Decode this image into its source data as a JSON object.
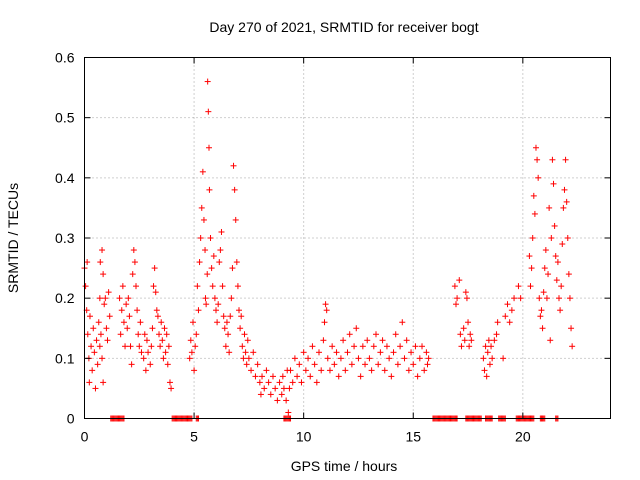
{
  "chart_data": {
    "type": "scatter",
    "title": "Day 270 of 2021, SRMTID for receiver bogt",
    "xlabel": "GPS time / hours",
    "ylabel": "SRMTID / TECUs",
    "xlim": [
      0,
      24
    ],
    "ylim": [
      0,
      0.6
    ],
    "x_ticks": [
      0,
      5,
      10,
      15,
      20
    ],
    "x_tick_labels": [
      "0",
      "5",
      "10",
      "15",
      "20"
    ],
    "y_ticks": [
      0,
      0.1,
      0.2,
      0.3,
      0.4,
      0.5,
      0.6
    ],
    "y_tick_labels": [
      "0",
      "0.1",
      "0.2",
      "0.3",
      "0.4",
      "0.5",
      "0.6"
    ],
    "grid": true,
    "marker": "plus",
    "series_color": "#ff0000",
    "series": [
      {
        "name": "SRMTID",
        "points": [
          [
            0.0,
            0.25
          ],
          [
            0.05,
            0.22
          ],
          [
            0.1,
            0.18
          ],
          [
            0.12,
            0.26
          ],
          [
            0.15,
            0.14
          ],
          [
            0.2,
            0.1
          ],
          [
            0.22,
            0.06
          ],
          [
            0.25,
            0.17
          ],
          [
            0.3,
            0.12
          ],
          [
            0.35,
            0.08
          ],
          [
            0.4,
            0.15
          ],
          [
            0.45,
            0.11
          ],
          [
            0.5,
            0.05
          ],
          [
            0.55,
            0.13
          ],
          [
            0.6,
            0.09
          ],
          [
            0.65,
            0.16
          ],
          [
            0.7,
            0.12
          ],
          [
            0.75,
            0.14
          ],
          [
            0.8,
            0.1
          ],
          [
            0.85,
            0.06
          ],
          [
            0.7,
            0.2
          ],
          [
            0.72,
            0.26
          ],
          [
            0.8,
            0.28
          ],
          [
            0.85,
            0.24
          ],
          [
            0.9,
            0.19
          ],
          [
            0.95,
            0.2
          ],
          [
            1.0,
            0.15
          ],
          [
            1.05,
            0.13
          ],
          [
            1.1,
            0.21
          ],
          [
            1.15,
            0.17
          ],
          [
            1.6,
            0.2
          ],
          [
            1.65,
            0.14
          ],
          [
            1.7,
            0.18
          ],
          [
            1.75,
            0.22
          ],
          [
            1.8,
            0.16
          ],
          [
            1.85,
            0.12
          ],
          [
            1.9,
            0.19
          ],
          [
            1.95,
            0.15
          ],
          [
            2.0,
            0.2
          ],
          [
            2.05,
            0.17
          ],
          [
            2.1,
            0.12
          ],
          [
            2.15,
            0.09
          ],
          [
            2.2,
            0.24
          ],
          [
            2.25,
            0.28
          ],
          [
            2.3,
            0.26
          ],
          [
            2.35,
            0.22
          ],
          [
            2.4,
            0.18
          ],
          [
            2.45,
            0.14
          ],
          [
            2.5,
            0.12
          ],
          [
            2.55,
            0.16
          ],
          [
            2.6,
            0.11
          ],
          [
            2.7,
            0.1
          ],
          [
            2.75,
            0.14
          ],
          [
            2.8,
            0.08
          ],
          [
            2.85,
            0.13
          ],
          [
            2.9,
            0.11
          ],
          [
            3.0,
            0.09
          ],
          [
            3.05,
            0.12
          ],
          [
            3.1,
            0.15
          ],
          [
            3.15,
            0.22
          ],
          [
            3.2,
            0.25
          ],
          [
            3.25,
            0.21
          ],
          [
            3.3,
            0.18
          ],
          [
            3.35,
            0.17
          ],
          [
            3.4,
            0.14
          ],
          [
            3.45,
            0.12
          ],
          [
            3.5,
            0.16
          ],
          [
            3.55,
            0.13
          ],
          [
            3.6,
            0.1
          ],
          [
            3.65,
            0.15
          ],
          [
            3.7,
            0.11
          ],
          [
            3.75,
            0.14
          ],
          [
            3.8,
            0.09
          ],
          [
            3.85,
            0.12
          ],
          [
            3.9,
            0.06
          ],
          [
            3.95,
            0.05
          ],
          [
            4.8,
            0.1
          ],
          [
            4.85,
            0.13
          ],
          [
            4.9,
            0.11
          ],
          [
            4.95,
            0.16
          ],
          [
            5.0,
            0.08
          ],
          [
            5.05,
            0.12
          ],
          [
            5.1,
            0.14
          ],
          [
            5.15,
            0.22
          ],
          [
            5.2,
            0.18
          ],
          [
            5.25,
            0.26
          ],
          [
            5.3,
            0.3
          ],
          [
            5.35,
            0.35
          ],
          [
            5.4,
            0.41
          ],
          [
            5.45,
            0.33
          ],
          [
            5.5,
            0.28
          ],
          [
            5.52,
            0.2
          ],
          [
            5.55,
            0.19
          ],
          [
            5.6,
            0.24
          ],
          [
            5.62,
            0.56
          ],
          [
            5.65,
            0.51
          ],
          [
            5.68,
            0.45
          ],
          [
            5.7,
            0.38
          ],
          [
            5.75,
            0.3
          ],
          [
            5.8,
            0.25
          ],
          [
            5.85,
            0.22
          ],
          [
            5.9,
            0.27
          ],
          [
            5.95,
            0.2
          ],
          [
            6.0,
            0.18
          ],
          [
            6.05,
            0.16
          ],
          [
            6.1,
            0.19
          ],
          [
            6.15,
            0.26
          ],
          [
            6.2,
            0.28
          ],
          [
            6.25,
            0.31
          ],
          [
            6.3,
            0.22
          ],
          [
            6.35,
            0.17
          ],
          [
            6.4,
            0.15
          ],
          [
            6.45,
            0.12
          ],
          [
            6.5,
            0.16
          ],
          [
            6.55,
            0.14
          ],
          [
            6.6,
            0.11
          ],
          [
            6.65,
            0.17
          ],
          [
            6.7,
            0.2
          ],
          [
            6.75,
            0.25
          ],
          [
            6.8,
            0.42
          ],
          [
            6.85,
            0.38
          ],
          [
            6.9,
            0.33
          ],
          [
            6.95,
            0.26
          ],
          [
            7.0,
            0.22
          ],
          [
            7.05,
            0.18
          ],
          [
            7.1,
            0.15
          ],
          [
            7.15,
            0.17
          ],
          [
            7.2,
            0.12
          ],
          [
            7.25,
            0.1
          ],
          [
            7.3,
            0.14
          ],
          [
            7.35,
            0.11
          ],
          [
            7.4,
            0.09
          ],
          [
            7.45,
            0.13
          ],
          [
            7.5,
            0.1
          ],
          [
            7.6,
            0.08
          ],
          [
            7.7,
            0.11
          ],
          [
            7.8,
            0.07
          ],
          [
            7.9,
            0.09
          ],
          [
            8.0,
            0.06
          ],
          [
            8.05,
            0.04
          ],
          [
            8.1,
            0.07
          ],
          [
            8.2,
            0.05
          ],
          [
            8.3,
            0.08
          ],
          [
            8.4,
            0.06
          ],
          [
            8.5,
            0.04
          ],
          [
            8.6,
            0.07
          ],
          [
            8.7,
            0.05
          ],
          [
            8.8,
            0.03
          ],
          [
            8.9,
            0.06
          ],
          [
            9.0,
            0.04
          ],
          [
            9.05,
            0.07
          ],
          [
            9.1,
            0.05
          ],
          [
            9.2,
            0.03
          ],
          [
            9.25,
            0.08
          ],
          [
            9.3,
            0.01
          ],
          [
            9.35,
            0.05
          ],
          [
            9.4,
            0.08
          ],
          [
            9.5,
            0.06
          ],
          [
            9.6,
            0.1
          ],
          [
            9.7,
            0.07
          ],
          [
            9.8,
            0.09
          ],
          [
            9.9,
            0.06
          ],
          [
            10.0,
            0.11
          ],
          [
            10.1,
            0.08
          ],
          [
            10.2,
            0.1
          ],
          [
            10.3,
            0.07
          ],
          [
            10.4,
            0.12
          ],
          [
            10.5,
            0.09
          ],
          [
            10.6,
            0.06
          ],
          [
            10.7,
            0.11
          ],
          [
            10.8,
            0.08
          ],
          [
            10.9,
            0.13
          ],
          [
            10.95,
            0.16
          ],
          [
            11.0,
            0.19
          ],
          [
            11.05,
            0.18
          ],
          [
            11.1,
            0.1
          ],
          [
            11.2,
            0.08
          ],
          [
            11.3,
            0.12
          ],
          [
            11.4,
            0.09
          ],
          [
            11.5,
            0.11
          ],
          [
            11.6,
            0.07
          ],
          [
            11.7,
            0.1
          ],
          [
            11.8,
            0.13
          ],
          [
            11.9,
            0.08
          ],
          [
            12.0,
            0.11
          ],
          [
            12.1,
            0.14
          ],
          [
            12.2,
            0.09
          ],
          [
            12.3,
            0.12
          ],
          [
            12.4,
            0.15
          ],
          [
            12.5,
            0.1
          ],
          [
            12.6,
            0.07
          ],
          [
            12.7,
            0.12
          ],
          [
            12.8,
            0.09
          ],
          [
            12.9,
            0.13
          ],
          [
            13.0,
            0.1
          ],
          [
            13.1,
            0.08
          ],
          [
            13.2,
            0.12
          ],
          [
            13.3,
            0.14
          ],
          [
            13.4,
            0.09
          ],
          [
            13.5,
            0.11
          ],
          [
            13.6,
            0.13
          ],
          [
            13.7,
            0.08
          ],
          [
            13.8,
            0.12
          ],
          [
            13.9,
            0.1
          ],
          [
            14.0,
            0.07
          ],
          [
            14.1,
            0.11
          ],
          [
            14.2,
            0.14
          ],
          [
            14.3,
            0.09
          ],
          [
            14.4,
            0.12
          ],
          [
            14.5,
            0.16
          ],
          [
            14.6,
            0.1
          ],
          [
            14.7,
            0.13
          ],
          [
            14.8,
            0.08
          ],
          [
            14.9,
            0.11
          ],
          [
            15.0,
            0.09
          ],
          [
            15.1,
            0.12
          ],
          [
            15.2,
            0.07
          ],
          [
            15.3,
            0.1
          ],
          [
            15.4,
            0.12
          ],
          [
            15.5,
            0.08
          ],
          [
            15.6,
            0.11
          ],
          [
            15.65,
            0.09
          ],
          [
            15.7,
            0.1
          ],
          [
            16.9,
            0.22
          ],
          [
            16.95,
            0.19
          ],
          [
            17.0,
            0.2
          ],
          [
            17.1,
            0.23
          ],
          [
            17.15,
            0.14
          ],
          [
            17.2,
            0.12
          ],
          [
            17.3,
            0.15
          ],
          [
            17.35,
            0.13
          ],
          [
            17.4,
            0.21
          ],
          [
            17.45,
            0.2
          ],
          [
            17.5,
            0.16
          ],
          [
            17.55,
            0.12
          ],
          [
            17.6,
            0.14
          ],
          [
            17.65,
            0.13
          ],
          [
            18.2,
            0.1
          ],
          [
            18.25,
            0.08
          ],
          [
            18.3,
            0.12
          ],
          [
            18.35,
            0.07
          ],
          [
            18.4,
            0.11
          ],
          [
            18.45,
            0.13
          ],
          [
            18.5,
            0.09
          ],
          [
            18.55,
            0.12
          ],
          [
            18.6,
            0.1
          ],
          [
            18.7,
            0.13
          ],
          [
            18.8,
            0.14
          ],
          [
            18.85,
            0.16
          ],
          [
            19.1,
            0.1
          ],
          [
            19.2,
            0.17
          ],
          [
            19.3,
            0.19
          ],
          [
            19.4,
            0.16
          ],
          [
            19.5,
            0.18
          ],
          [
            19.6,
            0.2
          ],
          [
            19.8,
            0.22
          ],
          [
            19.9,
            0.2
          ],
          [
            20.3,
            0.27
          ],
          [
            20.35,
            0.22
          ],
          [
            20.4,
            0.25
          ],
          [
            20.45,
            0.3
          ],
          [
            20.5,
            0.37
          ],
          [
            20.55,
            0.34
          ],
          [
            20.6,
            0.45
          ],
          [
            20.65,
            0.43
          ],
          [
            20.7,
            0.4
          ],
          [
            20.75,
            0.2
          ],
          [
            20.8,
            0.17
          ],
          [
            20.85,
            0.18
          ],
          [
            20.9,
            0.15
          ],
          [
            20.95,
            0.21
          ],
          [
            21.0,
            0.25
          ],
          [
            21.05,
            0.28
          ],
          [
            21.1,
            0.2
          ],
          [
            21.15,
            0.24
          ],
          [
            21.2,
            0.35
          ],
          [
            21.25,
            0.13
          ],
          [
            21.3,
            0.3
          ],
          [
            21.35,
            0.43
          ],
          [
            21.4,
            0.39
          ],
          [
            21.45,
            0.32
          ],
          [
            21.5,
            0.27
          ],
          [
            21.55,
            0.23
          ],
          [
            21.6,
            0.26
          ],
          [
            21.65,
            0.2
          ],
          [
            21.7,
            0.18
          ],
          [
            21.75,
            0.22
          ],
          [
            21.8,
            0.29
          ],
          [
            21.85,
            0.35
          ],
          [
            21.9,
            0.38
          ],
          [
            21.95,
            0.43
          ],
          [
            22.0,
            0.36
          ],
          [
            22.05,
            0.3
          ],
          [
            22.1,
            0.24
          ],
          [
            22.15,
            0.2
          ],
          [
            22.2,
            0.15
          ],
          [
            22.25,
            0.12
          ]
        ],
        "zero_value_ranges": [
          [
            1.2,
            1.8
          ],
          [
            4.0,
            4.9
          ],
          [
            5.1,
            5.2
          ],
          [
            9.1,
            9.4
          ],
          [
            15.9,
            17.0
          ],
          [
            17.4,
            18.1
          ],
          [
            18.3,
            18.6
          ],
          [
            18.9,
            19.2
          ],
          [
            19.7,
            20.5
          ],
          [
            20.8,
            21.0
          ],
          [
            21.5,
            21.6
          ]
        ]
      }
    ]
  }
}
